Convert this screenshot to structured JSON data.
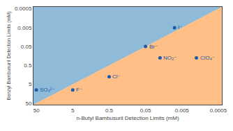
{
  "chart_data": {
    "type": "scatter",
    "xlabel": "n-Butyl Bambusuril Detection Limits (mM)",
    "ylabel": "Benzyl Bambusuril Detection Limits (mM)",
    "x": [
      50,
      5,
      0.5,
      0.05,
      0.02,
      0.008,
      0.002
    ],
    "values": [
      10,
      10,
      2,
      0.05,
      0.2,
      0.005,
      0.2
    ],
    "annotations": [
      "SO₄²⁻",
      "F⁻",
      "Cl⁻",
      "Br⁻",
      "NO₂⁻",
      "I⁻",
      "ClO₄⁻"
    ],
    "color": "#1a5ca8",
    "log": true,
    "xlim": [
      60,
      0.0004
    ],
    "ylim": [
      60,
      0.0004
    ],
    "xticks": [
      50,
      5,
      0.5,
      0.05,
      0.005,
      0.0005
    ],
    "yticks": [
      50,
      5,
      0.5,
      0.05,
      0.005,
      0.0005
    ],
    "grid": false
  }
}
